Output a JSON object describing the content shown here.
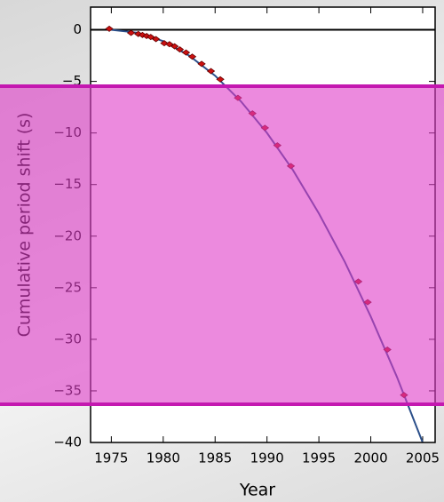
{
  "chart_data": {
    "type": "scatter",
    "xlabel": "Year",
    "ylabel": "Cumulative period shift (s)",
    "xlim": [
      1973,
      2006.2
    ],
    "ylim": [
      -40,
      2.2
    ],
    "xticks": [
      1975,
      1980,
      1985,
      1990,
      1995,
      2000,
      2005
    ],
    "yticks": [
      0,
      {
        "value": -5,
        "label": "−5"
      },
      {
        "value": -10,
        "label": "−10"
      },
      {
        "value": -15,
        "label": "−15"
      },
      {
        "value": -20,
        "label": "−20"
      },
      {
        "value": -25,
        "label": "−25"
      },
      {
        "value": -30,
        "label": "−30"
      },
      {
        "value": -35,
        "label": "−35"
      },
      {
        "value": -40,
        "label": "−40"
      }
    ],
    "zero_line": true,
    "x": [
      1974.8,
      1976.9,
      1977.6,
      1978.0,
      1978.4,
      1978.8,
      1979.3,
      1980.1,
      1980.6,
      1981.1,
      1981.6,
      1982.2,
      1982.8,
      1983.7,
      1984.6,
      1985.5,
      1987.2,
      1988.6,
      1989.8,
      1991.0,
      1992.3,
      1998.8,
      1999.7,
      2001.6,
      2003.2
    ],
    "values": [
      0.1,
      -0.3,
      -0.4,
      -0.5,
      -0.6,
      -0.7,
      -0.9,
      -1.3,
      -1.4,
      -1.6,
      -1.9,
      -2.2,
      -2.6,
      -3.3,
      -4.0,
      -4.8,
      -6.6,
      -8.1,
      -9.5,
      -11.2,
      -13.2,
      -24.4,
      -26.4,
      -31.0,
      -35.4
    ],
    "color": "#cc1111",
    "curve": {
      "color": "#2b4f8a",
      "x": [
        1975,
        1977.5,
        1980,
        1982.5,
        1985,
        1987.5,
        1990,
        1992.5,
        1995,
        1997.5,
        2000,
        2002.5,
        2005
      ],
      "values": [
        0,
        -0.28,
        -1.1,
        -2.5,
        -4.45,
        -6.95,
        -10.0,
        -13.6,
        -17.8,
        -22.5,
        -27.8,
        -33.6,
        -40.0
      ]
    }
  }
}
